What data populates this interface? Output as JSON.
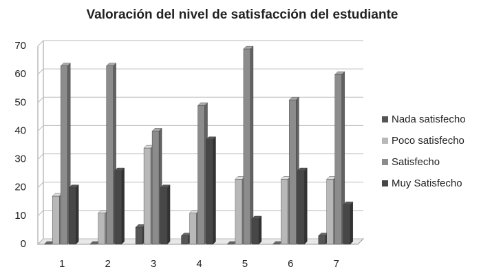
{
  "chart_data": {
    "type": "bar3d",
    "title": "Valoración del nivel de satisfacción del estudiante",
    "categories": [
      "1",
      "2",
      "3",
      "4",
      "5",
      "6",
      "7"
    ],
    "series": [
      {
        "name": "Nada satisfecho",
        "color": "#555555",
        "values": [
          0,
          0,
          6,
          3,
          0,
          0,
          3
        ]
      },
      {
        "name": "Poco satisfecho",
        "color": "#b8b8b8",
        "values": [
          17,
          11,
          34,
          11,
          23,
          23,
          23
        ]
      },
      {
        "name": "Satisfecho",
        "color": "#8c8c8c",
        "values": [
          63,
          63,
          40,
          49,
          69,
          51,
          60
        ]
      },
      {
        "name": "Muy Satisfecho",
        "color": "#474747",
        "values": [
          20,
          26,
          20,
          37,
          9,
          26,
          14
        ]
      }
    ],
    "ylim": [
      0,
      70
    ],
    "yticks": [
      0,
      10,
      20,
      30,
      40,
      50,
      60,
      70
    ],
    "grid": true,
    "legend": "right"
  }
}
